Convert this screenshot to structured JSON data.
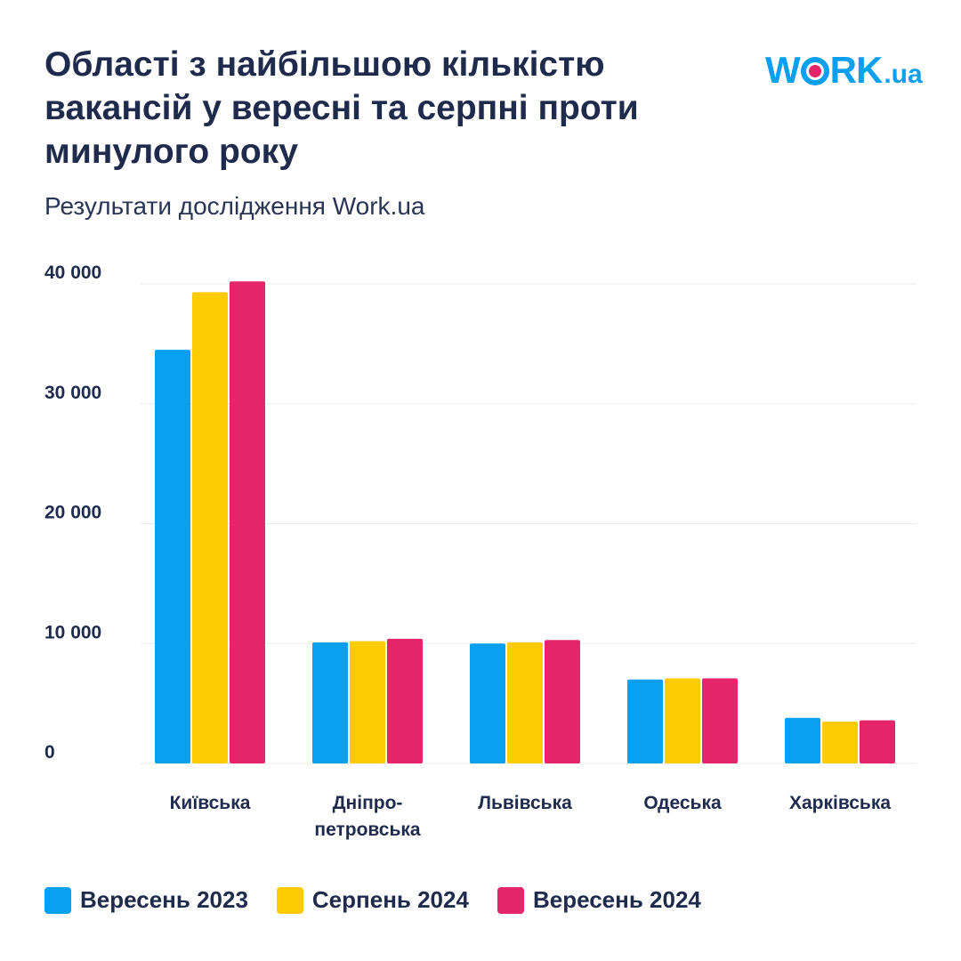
{
  "header": {
    "title": "Області з найбільшою кількістю\nвакансій у вересні та серпні проти\nминулого року",
    "subtitle": "Результати дослідження Work.ua",
    "logo_text": "WORK.ua"
  },
  "chart_data": {
    "type": "bar",
    "title": "Області з найбільшою кількістю вакансій у вересні та серпні проти минулого року",
    "subtitle": "Результати дослідження Work.ua",
    "categories": [
      "Київська",
      "Дніпро-\nпетровська",
      "Львівська",
      "Одеська",
      "Харківська"
    ],
    "series": [
      {
        "name": "Вересень 2023",
        "color": "#0aa0f0",
        "values": [
          34500,
          10100,
          10000,
          7000,
          3800
        ]
      },
      {
        "name": "Серпень 2024",
        "color": "#ffcb05",
        "values": [
          39300,
          10200,
          10100,
          7100,
          3500
        ]
      },
      {
        "name": "Вересень 2024",
        "color": "#e5256a",
        "values": [
          40200,
          10400,
          10300,
          7100,
          3600
        ]
      }
    ],
    "ylim": [
      0,
      40000
    ],
    "yticks": [
      0,
      10000,
      20000,
      30000,
      40000
    ],
    "ytick_labels": [
      "0",
      "10 000",
      "20 000",
      "30 000",
      "40 000"
    ],
    "xlabel": "",
    "ylabel": "",
    "grid": true,
    "legend_position": "bottom-left"
  }
}
